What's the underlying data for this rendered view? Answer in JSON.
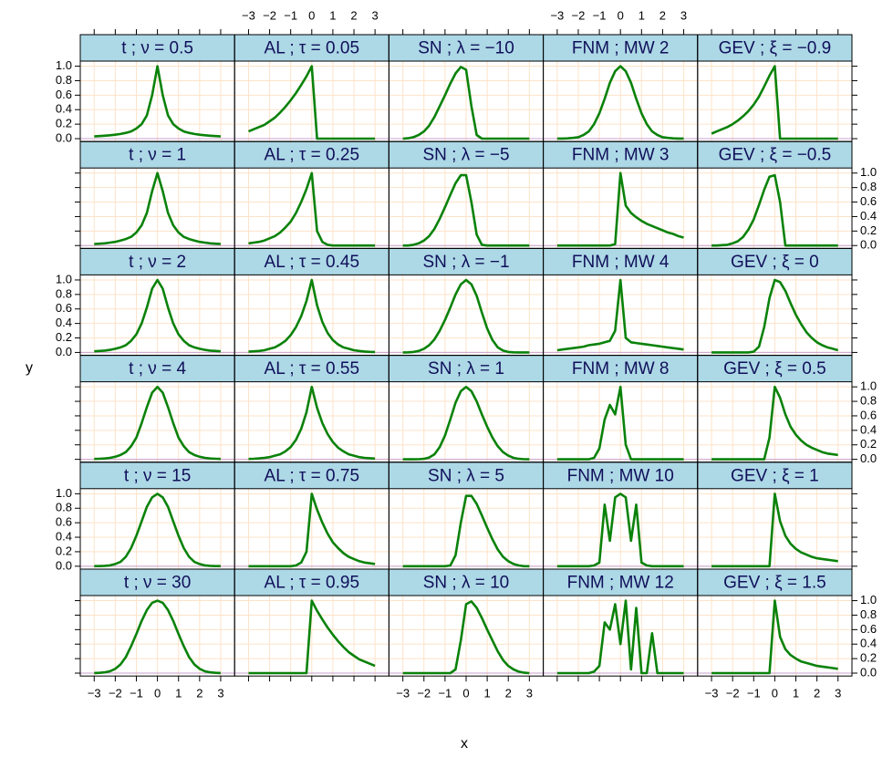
{
  "chart_data": {
    "type": "line",
    "x_label": "x",
    "y_label": "y",
    "xlim": [
      -3.66,
      3.66
    ],
    "ylim": [
      -0.04,
      1.07
    ],
    "xticks": [
      {
        "value": -3,
        "label": "−3"
      },
      {
        "value": -2,
        "label": "−2"
      },
      {
        "value": -1,
        "label": "−1"
      },
      0,
      1,
      2,
      3
    ],
    "yticks": [
      {
        "value": 0,
        "label": "0.0"
      },
      0.2,
      0.4,
      0.6,
      0.8,
      {
        "value": 1,
        "label": "1.0"
      }
    ],
    "grid": true,
    "columns": 5,
    "line_color": "#0a820a",
    "strip_color": "#add8e6",
    "grid_color": "#fde3c8",
    "baseline_color": "#c9a0cf",
    "x": [
      -3,
      -2.75,
      -2.5,
      -2.25,
      -2,
      -1.75,
      -1.5,
      -1.25,
      -1,
      -0.75,
      -0.5,
      -0.25,
      0,
      0.25,
      0.5,
      0.75,
      1,
      1.25,
      1.5,
      1.75,
      2,
      2.25,
      2.5,
      2.75,
      3
    ],
    "panels": [
      {
        "title": "t ; ν = 0.5",
        "values": [
          0.03,
          0.035,
          0.04,
          0.047,
          0.055,
          0.065,
          0.08,
          0.1,
          0.14,
          0.2,
          0.32,
          0.6,
          1,
          0.6,
          0.32,
          0.2,
          0.14,
          0.1,
          0.08,
          0.065,
          0.055,
          0.047,
          0.04,
          0.035,
          0.03
        ]
      },
      {
        "title": "AL ; τ = 0.05",
        "values": [
          0.1,
          0.13,
          0.16,
          0.19,
          0.24,
          0.29,
          0.36,
          0.44,
          0.53,
          0.63,
          0.74,
          0.86,
          1,
          0,
          0,
          0,
          0,
          0,
          0,
          0,
          0,
          0,
          0,
          0,
          0
        ]
      },
      {
        "title": "SN ; λ = −10",
        "values": [
          0,
          0.005,
          0.02,
          0.05,
          0.1,
          0.18,
          0.3,
          0.45,
          0.6,
          0.76,
          0.9,
          0.99,
          0.95,
          0.45,
          0.05,
          0,
          0,
          0,
          0,
          0,
          0,
          0,
          0,
          0,
          0
        ]
      },
      {
        "title": "FNM ; MW 2",
        "values": [
          0.001,
          0.002,
          0.004,
          0.01,
          0.02,
          0.05,
          0.1,
          0.2,
          0.35,
          0.55,
          0.77,
          0.93,
          1,
          0.93,
          0.77,
          0.55,
          0.35,
          0.2,
          0.1,
          0.05,
          0.02,
          0.01,
          0.004,
          0.002,
          0.001
        ]
      },
      {
        "title": "GEV ; ξ = −0.9",
        "values": [
          0.07,
          0.1,
          0.13,
          0.16,
          0.2,
          0.25,
          0.31,
          0.38,
          0.47,
          0.58,
          0.72,
          0.87,
          1,
          0,
          0,
          0,
          0,
          0,
          0,
          0,
          0,
          0,
          0,
          0,
          0
        ]
      },
      {
        "title": "t ; ν = 1",
        "values": [
          0.02,
          0.025,
          0.03,
          0.04,
          0.05,
          0.07,
          0.09,
          0.12,
          0.18,
          0.28,
          0.45,
          0.75,
          1,
          0.75,
          0.45,
          0.28,
          0.18,
          0.12,
          0.09,
          0.07,
          0.05,
          0.04,
          0.03,
          0.025,
          0.02
        ]
      },
      {
        "title": "AL ; τ = 0.25",
        "values": [
          0.03,
          0.04,
          0.05,
          0.07,
          0.1,
          0.13,
          0.18,
          0.25,
          0.33,
          0.45,
          0.6,
          0.78,
          1,
          0.2,
          0.05,
          0.01,
          0,
          0,
          0,
          0,
          0,
          0,
          0,
          0,
          0
        ]
      },
      {
        "title": "SN ; λ = −5",
        "values": [
          0,
          0,
          0.01,
          0.03,
          0.07,
          0.13,
          0.23,
          0.37,
          0.53,
          0.7,
          0.86,
          0.97,
          0.97,
          0.6,
          0.15,
          0.01,
          0,
          0,
          0,
          0,
          0,
          0,
          0,
          0,
          0
        ]
      },
      {
        "title": "FNM ; MW 3",
        "values": [
          0,
          0,
          0,
          0,
          0,
          0,
          0,
          0,
          0,
          0,
          0,
          0.02,
          1,
          0.55,
          0.45,
          0.39,
          0.34,
          0.3,
          0.27,
          0.24,
          0.21,
          0.18,
          0.16,
          0.13,
          0.11
        ]
      },
      {
        "title": "GEV ; ξ = −0.5",
        "values": [
          0,
          0,
          0.005,
          0.01,
          0.03,
          0.06,
          0.12,
          0.22,
          0.36,
          0.56,
          0.77,
          0.95,
          0.97,
          0.6,
          0,
          0,
          0,
          0,
          0,
          0,
          0,
          0,
          0,
          0,
          0
        ]
      },
      {
        "title": "t ; ν = 2",
        "values": [
          0.015,
          0.02,
          0.025,
          0.035,
          0.05,
          0.07,
          0.1,
          0.16,
          0.25,
          0.4,
          0.62,
          0.88,
          1,
          0.88,
          0.62,
          0.4,
          0.25,
          0.16,
          0.1,
          0.07,
          0.05,
          0.035,
          0.025,
          0.02,
          0.015
        ]
      },
      {
        "title": "AL ; τ = 0.45",
        "values": [
          0.01,
          0.015,
          0.02,
          0.03,
          0.05,
          0.07,
          0.11,
          0.16,
          0.24,
          0.35,
          0.5,
          0.71,
          1,
          0.65,
          0.42,
          0.27,
          0.17,
          0.11,
          0.07,
          0.05,
          0.03,
          0.02,
          0.013,
          0.008,
          0.005
        ]
      },
      {
        "title": "SN ; λ = −1",
        "values": [
          0,
          0.002,
          0.007,
          0.02,
          0.05,
          0.1,
          0.18,
          0.3,
          0.45,
          0.62,
          0.8,
          0.94,
          1,
          0.94,
          0.78,
          0.55,
          0.33,
          0.17,
          0.07,
          0.025,
          0.007,
          0.002,
          0,
          0,
          0
        ]
      },
      {
        "title": "FNM ; MW 4",
        "values": [
          0.03,
          0.04,
          0.05,
          0.06,
          0.07,
          0.08,
          0.1,
          0.11,
          0.12,
          0.14,
          0.16,
          0.3,
          1,
          0.2,
          0.14,
          0.13,
          0.12,
          0.11,
          0.1,
          0.09,
          0.08,
          0.07,
          0.06,
          0.05,
          0.04
        ]
      },
      {
        "title": "GEV ; ξ = 0",
        "values": [
          0,
          0,
          0,
          0,
          0,
          0,
          0,
          0,
          0.01,
          0.08,
          0.35,
          0.75,
          1,
          0.97,
          0.85,
          0.68,
          0.52,
          0.39,
          0.28,
          0.2,
          0.14,
          0.1,
          0.07,
          0.05,
          0.03
        ]
      },
      {
        "title": "t ; ν = 4",
        "values": [
          0.005,
          0.008,
          0.012,
          0.02,
          0.035,
          0.06,
          0.1,
          0.18,
          0.3,
          0.5,
          0.72,
          0.92,
          1,
          0.92,
          0.72,
          0.5,
          0.3,
          0.18,
          0.1,
          0.06,
          0.035,
          0.02,
          0.012,
          0.008,
          0.005
        ]
      },
      {
        "title": "AL ; τ = 0.55",
        "values": [
          0.005,
          0.008,
          0.013,
          0.02,
          0.03,
          0.05,
          0.07,
          0.11,
          0.17,
          0.27,
          0.42,
          0.65,
          1,
          0.71,
          0.5,
          0.35,
          0.24,
          0.16,
          0.11,
          0.07,
          0.05,
          0.03,
          0.02,
          0.015,
          0.01
        ]
      },
      {
        "title": "SN ; λ = 1",
        "values": [
          0,
          0,
          0,
          0.002,
          0.007,
          0.025,
          0.07,
          0.17,
          0.33,
          0.55,
          0.78,
          0.94,
          1,
          0.94,
          0.8,
          0.62,
          0.45,
          0.3,
          0.18,
          0.1,
          0.05,
          0.02,
          0.007,
          0.002,
          0
        ]
      },
      {
        "title": "FNM ; MW 8",
        "values": [
          0,
          0,
          0,
          0,
          0,
          0,
          0,
          0.02,
          0.15,
          0.55,
          0.75,
          0.62,
          1,
          0.2,
          0,
          0,
          0,
          0,
          0,
          0,
          0,
          0,
          0,
          0,
          0
        ]
      },
      {
        "title": "GEV ; ξ = 0.5",
        "values": [
          0,
          0,
          0,
          0,
          0,
          0,
          0,
          0,
          0,
          0,
          0,
          0.3,
          1,
          0.85,
          0.62,
          0.45,
          0.34,
          0.26,
          0.2,
          0.16,
          0.13,
          0.1,
          0.08,
          0.07,
          0.06
        ]
      },
      {
        "title": "t ; ν = 15",
        "values": [
          0.001,
          0.002,
          0.005,
          0.012,
          0.03,
          0.06,
          0.13,
          0.25,
          0.42,
          0.62,
          0.82,
          0.95,
          1,
          0.95,
          0.82,
          0.62,
          0.42,
          0.25,
          0.13,
          0.06,
          0.03,
          0.012,
          0.005,
          0.002,
          0.001
        ]
      },
      {
        "title": "AL ; τ = 0.75",
        "values": [
          0,
          0,
          0,
          0,
          0,
          0,
          0,
          0,
          0,
          0.01,
          0.05,
          0.2,
          1,
          0.78,
          0.6,
          0.45,
          0.33,
          0.25,
          0.18,
          0.13,
          0.1,
          0.07,
          0.05,
          0.04,
          0.03
        ]
      },
      {
        "title": "SN ; λ = 5",
        "values": [
          0,
          0,
          0,
          0,
          0,
          0,
          0,
          0,
          0,
          0.01,
          0.15,
          0.6,
          0.97,
          0.97,
          0.86,
          0.7,
          0.53,
          0.37,
          0.23,
          0.13,
          0.07,
          0.03,
          0.01,
          0,
          0
        ]
      },
      {
        "title": "FNM ; MW 10",
        "values": [
          0,
          0,
          0,
          0,
          0,
          0,
          0,
          0.01,
          0.05,
          0.85,
          0.35,
          0.95,
          1,
          0.95,
          0.35,
          0.85,
          0.05,
          0.01,
          0,
          0,
          0,
          0,
          0,
          0,
          0
        ]
      },
      {
        "title": "GEV ; ξ = 1",
        "values": [
          0,
          0,
          0,
          0,
          0,
          0,
          0,
          0,
          0,
          0,
          0,
          0,
          1,
          0.62,
          0.42,
          0.31,
          0.24,
          0.19,
          0.16,
          0.13,
          0.11,
          0.1,
          0.09,
          0.08,
          0.07
        ]
      },
      {
        "title": "t ; ν = 30",
        "values": [
          0.001,
          0.004,
          0.01,
          0.025,
          0.06,
          0.12,
          0.22,
          0.37,
          0.54,
          0.72,
          0.87,
          0.97,
          1,
          0.97,
          0.87,
          0.72,
          0.54,
          0.37,
          0.22,
          0.12,
          0.06,
          0.025,
          0.01,
          0.004,
          0.001
        ]
      },
      {
        "title": "AL ; τ = 0.95",
        "values": [
          0,
          0,
          0,
          0,
          0,
          0,
          0,
          0,
          0,
          0,
          0,
          0,
          1,
          0.86,
          0.74,
          0.63,
          0.53,
          0.44,
          0.36,
          0.29,
          0.24,
          0.19,
          0.16,
          0.13,
          0.1
        ]
      },
      {
        "title": "SN ; λ = 10",
        "values": [
          0,
          0,
          0,
          0,
          0,
          0,
          0,
          0,
          0,
          0,
          0.05,
          0.45,
          0.95,
          0.99,
          0.9,
          0.76,
          0.6,
          0.45,
          0.3,
          0.18,
          0.1,
          0.05,
          0.02,
          0.005,
          0
        ]
      },
      {
        "title": "FNM ; MW 12",
        "values": [
          0,
          0,
          0,
          0,
          0,
          0,
          0,
          0.02,
          0.1,
          0.7,
          0.6,
          0.95,
          0.4,
          1,
          0.05,
          0.9,
          0,
          0,
          0.55,
          0,
          0,
          0,
          0,
          0,
          0
        ]
      },
      {
        "title": "GEV ; ξ = 1.5",
        "values": [
          0,
          0,
          0,
          0,
          0,
          0,
          0,
          0,
          0,
          0,
          0,
          0,
          1,
          0.5,
          0.33,
          0.25,
          0.2,
          0.16,
          0.14,
          0.12,
          0.1,
          0.09,
          0.08,
          0.07,
          0.06
        ]
      }
    ]
  }
}
